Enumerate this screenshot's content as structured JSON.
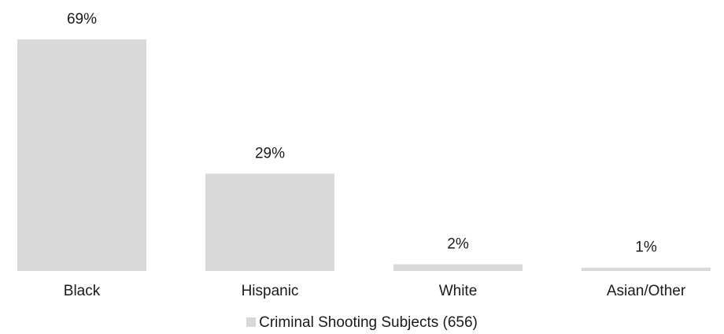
{
  "chart_data": {
    "type": "bar",
    "categories": [
      "Black",
      "Hispanic",
      "White",
      "Asian/Other"
    ],
    "series": [
      {
        "name": "Criminal Shooting Subjects (656)",
        "values": [
          69,
          29,
          2,
          1
        ]
      }
    ],
    "data_labels": [
      "69%",
      "29%",
      "2%",
      "1%"
    ],
    "title": "",
    "xlabel": "",
    "ylabel": "",
    "ylim": [
      0,
      69
    ],
    "grid": false,
    "legend_position": "bottom",
    "bar_color": "#d9d9d9",
    "text_color": "#1a1a1a"
  }
}
